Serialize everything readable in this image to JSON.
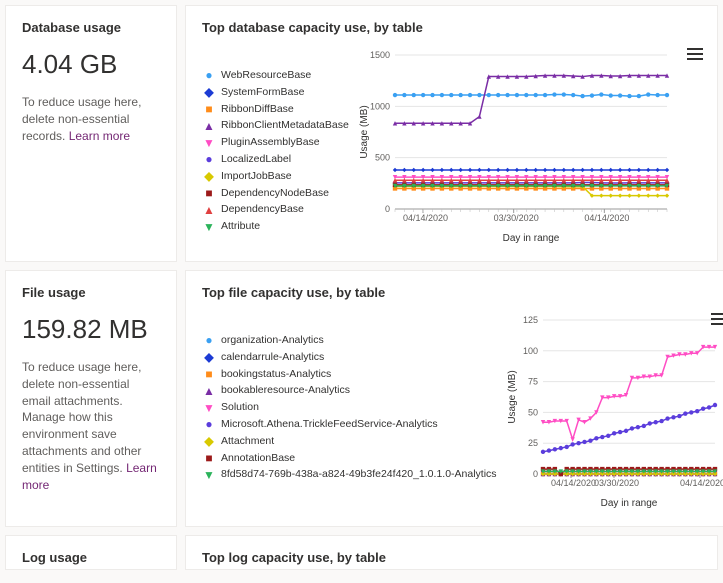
{
  "database": {
    "left_title": "Database usage",
    "value": "4.04 GB",
    "help_pre": "To reduce usage here, delete non-essential records. ",
    "learn_more": "Learn more",
    "right_title": "Top database capacity use, by table",
    "chart": {
      "type": "line",
      "ylabel": "Usage (MB)",
      "xlabel": "Day in range",
      "ylim": [
        0,
        1500
      ],
      "ytick_step": 500,
      "xticks": [
        "04/14/2020",
        "03/30/2020",
        "04/14/2020"
      ],
      "x_count": 30,
      "grid_color": "#e5e5e5",
      "background_color": "#ffffff",
      "axis_fontsize": 10,
      "series": [
        {
          "name": "WebResourceBase",
          "color": "#3aa0f2",
          "marker": "circle",
          "values": [
            1110,
            1110,
            1110,
            1110,
            1110,
            1110,
            1110,
            1110,
            1110,
            1110,
            1110,
            1110,
            1110,
            1110,
            1110,
            1110,
            1110,
            1115,
            1115,
            1110,
            1100,
            1105,
            1115,
            1105,
            1105,
            1100,
            1100,
            1115,
            1110,
            1110
          ]
        },
        {
          "name": "SystemFormBase",
          "color": "#1c3bd4",
          "marker": "diamond",
          "values": [
            380,
            380,
            380,
            380,
            380,
            380,
            380,
            380,
            380,
            380,
            380,
            380,
            380,
            380,
            380,
            380,
            380,
            380,
            380,
            380,
            380,
            380,
            380,
            380,
            380,
            380,
            380,
            380,
            380,
            380
          ]
        },
        {
          "name": "RibbonDiffBase",
          "color": "#ff8c1a",
          "marker": "square",
          "values": [
            200,
            200,
            200,
            200,
            200,
            200,
            200,
            200,
            200,
            200,
            200,
            200,
            200,
            200,
            200,
            200,
            200,
            200,
            200,
            200,
            200,
            200,
            200,
            200,
            200,
            200,
            200,
            200,
            200,
            200
          ]
        },
        {
          "name": "RibbonClientMetadataBase",
          "color": "#7a2da5",
          "marker": "triangle",
          "values": [
            835,
            835,
            835,
            835,
            835,
            835,
            835,
            835,
            835,
            900,
            1290,
            1290,
            1290,
            1290,
            1290,
            1295,
            1300,
            1300,
            1300,
            1295,
            1290,
            1300,
            1300,
            1295,
            1295,
            1300,
            1300,
            1300,
            1300,
            1300
          ]
        },
        {
          "name": "PluginAssemblyBase",
          "color": "#ff4dc4",
          "marker": "triangle-down",
          "values": [
            310,
            310,
            310,
            310,
            310,
            310,
            310,
            310,
            310,
            310,
            310,
            310,
            310,
            310,
            310,
            310,
            310,
            310,
            310,
            310,
            310,
            310,
            310,
            310,
            310,
            310,
            310,
            310,
            310,
            310
          ]
        },
        {
          "name": "LocalizedLabel",
          "color": "#5b3ddc",
          "marker": "circle",
          "values": [
            255,
            255,
            255,
            255,
            255,
            255,
            255,
            255,
            255,
            255,
            255,
            255,
            255,
            255,
            255,
            255,
            255,
            255,
            255,
            255,
            258,
            258,
            255,
            253,
            253,
            255,
            255,
            255,
            255,
            255
          ]
        },
        {
          "name": "ImportJobBase",
          "color": "#d8c900",
          "marker": "diamond",
          "values": [
            220,
            220,
            220,
            220,
            220,
            220,
            220,
            220,
            220,
            220,
            220,
            220,
            220,
            220,
            220,
            220,
            220,
            220,
            218,
            218,
            218,
            130,
            130,
            130,
            130,
            130,
            130,
            130,
            130,
            130
          ]
        },
        {
          "name": "DependencyNodeBase",
          "color": "#9c1a1a",
          "marker": "square",
          "values": [
            235,
            235,
            235,
            235,
            235,
            235,
            235,
            235,
            235,
            235,
            235,
            235,
            235,
            235,
            235,
            235,
            235,
            235,
            235,
            235,
            235,
            235,
            235,
            235,
            235,
            235,
            235,
            235,
            235,
            235
          ]
        },
        {
          "name": "DependencyBase",
          "color": "#e04040",
          "marker": "triangle",
          "values": [
            280,
            280,
            280,
            280,
            280,
            280,
            280,
            280,
            280,
            280,
            280,
            280,
            280,
            280,
            280,
            280,
            280,
            280,
            280,
            280,
            280,
            280,
            280,
            280,
            280,
            280,
            280,
            280,
            280,
            280
          ]
        },
        {
          "name": "Attribute",
          "color": "#2bb35b",
          "marker": "triangle-down",
          "values": [
            225,
            225,
            225,
            225,
            225,
            225,
            225,
            225,
            225,
            225,
            225,
            225,
            225,
            225,
            225,
            225,
            225,
            225,
            225,
            225,
            225,
            225,
            225,
            225,
            225,
            225,
            225,
            225,
            225,
            225
          ]
        }
      ]
    }
  },
  "file": {
    "left_title": "File usage",
    "value": "159.82 MB",
    "help_pre": "To reduce usage here, delete non-essential email attachments. Manage how this environment save attachments and other entities in Settings. ",
    "learn_more": "Learn more",
    "right_title": "Top file capacity use, by table",
    "chart": {
      "type": "line",
      "ylabel": "Usage (MB)",
      "xlabel": "Day in range",
      "ylim": [
        0,
        125
      ],
      "ytick_step": 25,
      "xticks": [
        "04/14/2020",
        "03/30/2020",
        "",
        "04/14/2020"
      ],
      "x_count": 30,
      "grid_color": "#e5e5e5",
      "background_color": "#ffffff",
      "axis_fontsize": 10,
      "series": [
        {
          "name": "organization-Analytics",
          "color": "#3aa0f2",
          "marker": "circle",
          "values": [
            0,
            0,
            0,
            0,
            0,
            0,
            0,
            0,
            0,
            0,
            0,
            0,
            0,
            0,
            0,
            0,
            0,
            0,
            0,
            0,
            0,
            0,
            0,
            0,
            0,
            0,
            0,
            0,
            0,
            0
          ]
        },
        {
          "name": "calendarrule-Analytics",
          "color": "#1c3bd4",
          "marker": "diamond",
          "values": [
            2,
            2,
            2,
            2,
            2,
            2,
            2,
            2,
            2,
            2,
            2,
            2,
            2,
            2,
            2,
            2,
            2,
            2,
            2,
            2,
            2,
            2,
            2,
            2,
            2,
            2,
            2,
            2,
            2,
            2
          ]
        },
        {
          "name": "bookingstatus-Analytics",
          "color": "#ff8c1a",
          "marker": "square",
          "values": [
            0,
            0,
            0,
            0,
            0,
            0,
            0,
            0,
            0,
            0,
            0,
            0,
            0,
            0,
            0,
            0,
            0,
            0,
            0,
            0,
            0,
            0,
            0,
            0,
            0,
            0,
            0,
            0,
            0,
            0
          ]
        },
        {
          "name": "bookableresource-Analytics",
          "color": "#7a2da5",
          "marker": "triangle",
          "values": [
            0,
            0,
            0,
            0,
            0,
            0,
            0,
            0,
            0,
            0,
            0,
            0,
            0,
            0,
            0,
            0,
            0,
            0,
            0,
            0,
            0,
            0,
            0,
            0,
            0,
            0,
            0,
            0,
            0,
            0
          ]
        },
        {
          "name": "Solution",
          "color": "#ff4dc4",
          "marker": "triangle-down",
          "values": [
            42,
            42,
            43,
            43,
            43,
            28,
            44,
            42,
            45,
            50,
            62,
            62,
            63,
            63,
            64,
            78,
            78,
            79,
            79,
            80,
            80,
            95,
            96,
            97,
            97,
            98,
            98,
            103,
            103,
            103
          ]
        },
        {
          "name": "Microsoft.Athena.TrickleFeedService-Analytics",
          "color": "#5b3ddc",
          "marker": "circle",
          "values": [
            18,
            19,
            20,
            21,
            22,
            24,
            25,
            26,
            27,
            29,
            30,
            31,
            33,
            34,
            35,
            37,
            38,
            39,
            41,
            42,
            43,
            45,
            46,
            47,
            49,
            50,
            51,
            53,
            54,
            56
          ]
        },
        {
          "name": "Attachment",
          "color": "#d8c900",
          "marker": "diamond",
          "values": [
            0,
            0,
            0,
            0,
            0,
            0,
            0,
            0,
            0,
            0,
            0,
            0,
            0,
            0,
            0,
            0,
            0,
            0,
            0,
            0,
            0,
            0,
            0,
            0,
            0,
            0,
            0,
            0,
            0,
            0
          ]
        },
        {
          "name": "AnnotationBase",
          "color": "#9c1a1a",
          "marker": "square",
          "values": [
            4,
            4,
            4,
            0,
            4,
            4,
            4,
            4,
            4,
            4,
            4,
            4,
            4,
            4,
            4,
            4,
            4,
            4,
            4,
            4,
            4,
            4,
            4,
            4,
            4,
            4,
            4,
            4,
            4,
            4
          ]
        },
        {
          "name": "8fd58d74-769b-438a-a824-49b3fe24f420_1.0.1.0-Analytics",
          "color": "#2bb35b",
          "marker": "triangle-down",
          "values": [
            2,
            2,
            2,
            2,
            2,
            2,
            2,
            2,
            2,
            2,
            2,
            2,
            2,
            2,
            2,
            2,
            2,
            2,
            2,
            2,
            2,
            2,
            2,
            2,
            2,
            2,
            2,
            2,
            2,
            2
          ]
        }
      ]
    }
  },
  "log": {
    "left_title": "Log usage",
    "right_title": "Top log capacity use, by table"
  }
}
